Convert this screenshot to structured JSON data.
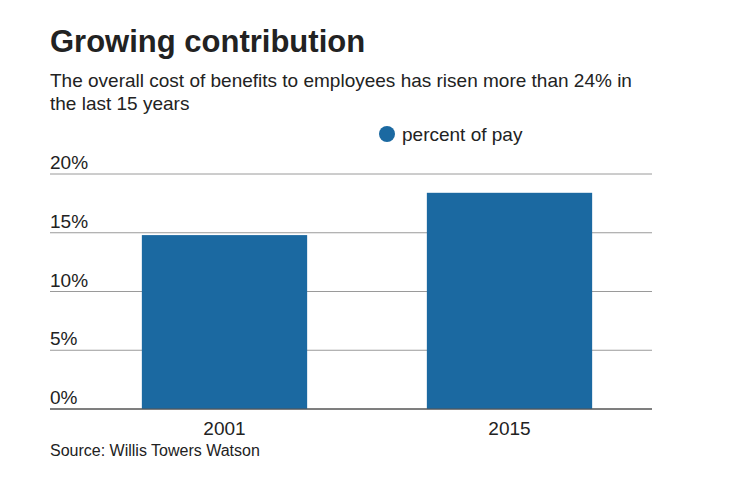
{
  "chart_data": {
    "type": "bar",
    "title": "Growing contribution",
    "subtitle": "The overall cost of benefits to employees has risen more than 24% in the last 15 years",
    "source": "Source: Willis Towers Watson",
    "categories": [
      "2001",
      "2015"
    ],
    "series": [
      {
        "name": "percent of pay",
        "color": "#1b69a1",
        "values": [
          14.8,
          18.4
        ]
      }
    ],
    "ylim": [
      0,
      20
    ],
    "yticks": [
      {
        "value": 0,
        "label": "0%"
      },
      {
        "value": 5,
        "label": "5%"
      },
      {
        "value": 10,
        "label": "10%"
      },
      {
        "value": 15,
        "label": "15%"
      },
      {
        "value": 20,
        "label": "20%"
      }
    ],
    "grid": true,
    "legend": "top"
  }
}
